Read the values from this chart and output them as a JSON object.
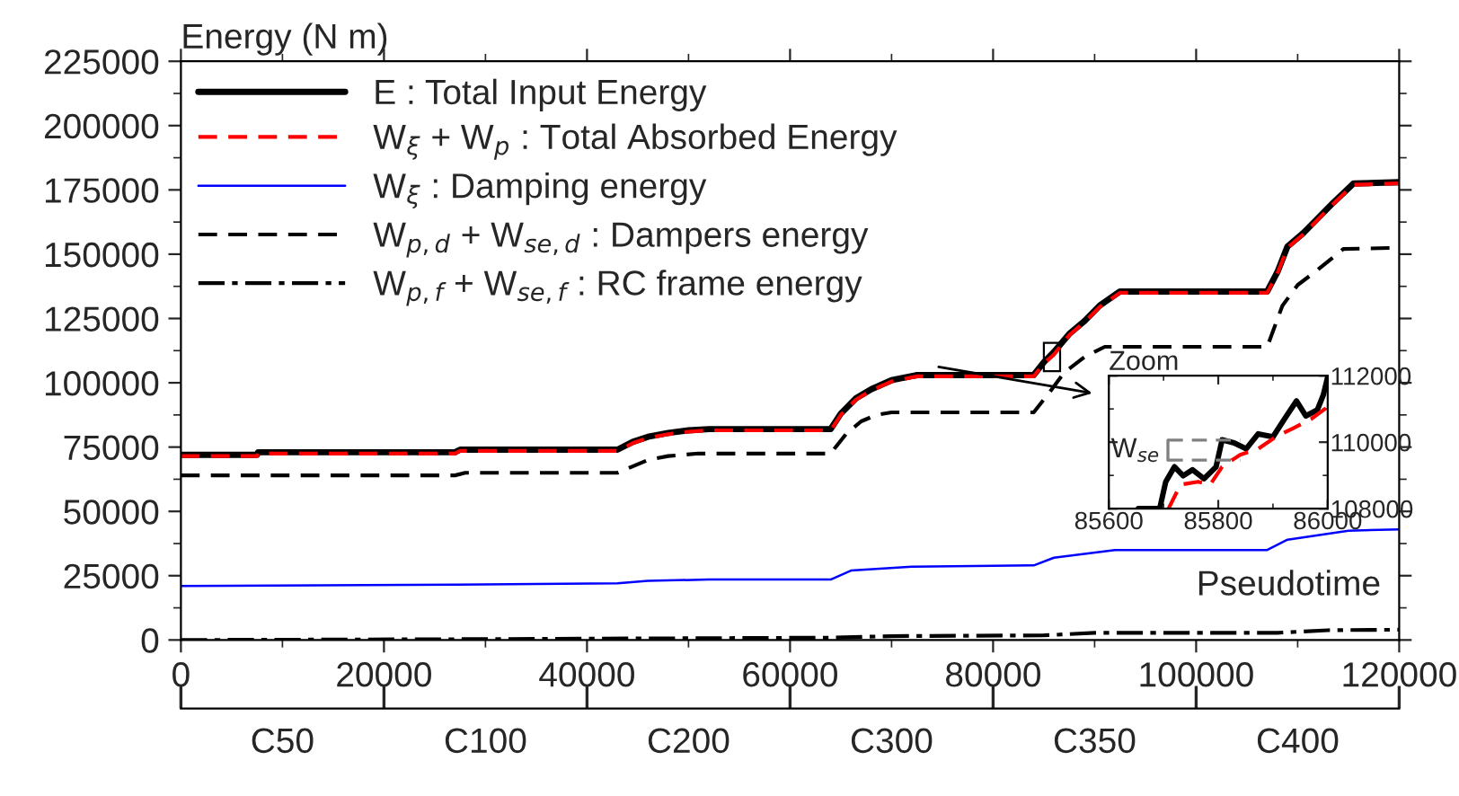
{
  "chart_data": [
    {
      "type": "line",
      "ylabel": "Energy (N m)",
      "xlabel": "Pseudotime",
      "xlim": [
        0,
        120000
      ],
      "xticks": [
        0,
        20000,
        40000,
        60000,
        80000,
        100000,
        120000
      ],
      "ylim": [
        0,
        225000
      ],
      "yticks": [
        0,
        25000,
        50000,
        75000,
        100000,
        125000,
        150000,
        175000,
        200000,
        225000
      ],
      "grid": false,
      "legend": "top left",
      "line_style": "solid",
      "marker": "none",
      "series": [
        {
          "name": "E : Total Input Energy",
          "color": "#000000",
          "x": [
            0,
            7500,
            7600,
            27000,
            27500,
            43000,
            44500,
            46000,
            48000,
            50000,
            52000,
            64000,
            65000,
            66500,
            68000,
            70000,
            72500,
            84000,
            85000,
            86000,
            87500,
            89000,
            90500,
            92500,
            107000,
            108000,
            109000,
            110500,
            112000,
            113500,
            115500,
            120000
          ],
          "values": [
            72000,
            72000,
            73000,
            73000,
            74000,
            74000,
            77000,
            79000,
            80500,
            81500,
            82000,
            82000,
            88000,
            94000,
            97500,
            101000,
            103000,
            103000,
            108000,
            112000,
            119000,
            124000,
            130000,
            135500,
            135500,
            143000,
            153000,
            158000,
            164000,
            170000,
            177500,
            178000
          ]
        },
        {
          "name": "W$_{ξ}$ + W$_{p}$ : Total Absorbed Energy",
          "color": "#ff0000",
          "line_style": "dashed",
          "x": [
            0,
            7500,
            7600,
            27000,
            27500,
            43000,
            44500,
            46000,
            48000,
            50000,
            52000,
            64000,
            65000,
            66500,
            68000,
            70000,
            72500,
            84000,
            85000,
            86000,
            87500,
            89000,
            90500,
            92500,
            107000,
            108000,
            109000,
            110500,
            112000,
            113500,
            115500,
            120000
          ],
          "values": [
            71500,
            71500,
            72500,
            72500,
            73500,
            73500,
            76500,
            78500,
            80000,
            81000,
            81500,
            81500,
            87500,
            93500,
            97000,
            100500,
            102500,
            102500,
            107500,
            111000,
            118500,
            123500,
            129500,
            135000,
            135000,
            142500,
            152500,
            157500,
            163500,
            169500,
            177000,
            177500
          ]
        },
        {
          "name": "W$_{ξ}$ : Damping energy",
          "color": "#0000ff",
          "x": [
            0,
            27000,
            43000,
            46000,
            52000,
            64000,
            66000,
            72000,
            84000,
            86000,
            92000,
            107000,
            109000,
            115000,
            120000
          ],
          "values": [
            21000,
            21500,
            22000,
            23000,
            23500,
            23500,
            27000,
            28500,
            29000,
            32000,
            35000,
            35000,
            39000,
            42500,
            43000
          ]
        },
        {
          "name": "W$_{p,d}$ + W$_{se,d}$ : Dampers energy",
          "color": "#000000",
          "line_style": "dashed",
          "x": [
            0,
            27000,
            28000,
            43000,
            44500,
            46000,
            48000,
            51000,
            64000,
            65500,
            67000,
            68500,
            70000,
            84000,
            85500,
            87000,
            89000,
            91000,
            107000,
            108500,
            110000,
            112000,
            114500,
            120000
          ],
          "values": [
            64000,
            64000,
            65000,
            65000,
            67500,
            70000,
            71500,
            72500,
            72500,
            80000,
            85000,
            87500,
            88500,
            88500,
            96000,
            104000,
            110000,
            114000,
            114000,
            130000,
            138000,
            144000,
            152000,
            152500
          ]
        },
        {
          "name": "W$_{p,f}$ + W$_{se,f}$ : RC frame energy",
          "color": "#000000",
          "line_style": "dashdot",
          "x": [
            0,
            27000,
            45000,
            64000,
            70000,
            85000,
            90000,
            108000,
            113000,
            120000
          ],
          "values": [
            0,
            300,
            600,
            900,
            1500,
            1800,
            2800,
            2800,
            3800,
            4000
          ]
        }
      ]
    },
    {
      "type": "line",
      "title": "Zoom",
      "xlim": [
        85600,
        86000
      ],
      "xticks": [
        85600,
        85800,
        86000
      ],
      "ylim": [
        108000,
        112000
      ],
      "yticks": [
        108000,
        110000,
        112000
      ],
      "grid": false,
      "legend": false,
      "marker": "none",
      "ref_lines": [
        {
          "axis": "y",
          "value": 110060,
          "label": "W$_{se}$",
          "color": "#808080",
          "line_style": "dashed"
        },
        {
          "axis": "y",
          "value": 109460,
          "color": "#808080",
          "line_style": "dashed"
        }
      ],
      "series": [
        {
          "color": "#000000",
          "x": [
            85654,
            85693,
            85704,
            85720,
            85736,
            85753,
            85774,
            85796,
            85807,
            85829,
            85851,
            85873,
            85900,
            85921,
            85943,
            85960,
            85981,
            85992,
            86000
          ],
          "values": [
            108000,
            108000,
            108810,
            109260,
            108990,
            109170,
            108900,
            109260,
            110070,
            109980,
            109800,
            110250,
            110160,
            110700,
            111240,
            110790,
            110970,
            111420,
            111960
          ]
        },
        {
          "color": "#ff0000",
          "line_style": "dashed",
          "x": [
            85709,
            85731,
            85763,
            85785,
            85807,
            85840,
            85873,
            85905,
            85938,
            85970,
            86000
          ],
          "values": [
            108000,
            108720,
            108810,
            108720,
            109260,
            109620,
            109800,
            110160,
            110430,
            110700,
            111060
          ]
        }
      ]
    },
    {
      "type": "other",
      "categories": [
        "C50",
        "C100",
        "C200",
        "C300",
        "C350",
        "C400"
      ]
    }
  ]
}
